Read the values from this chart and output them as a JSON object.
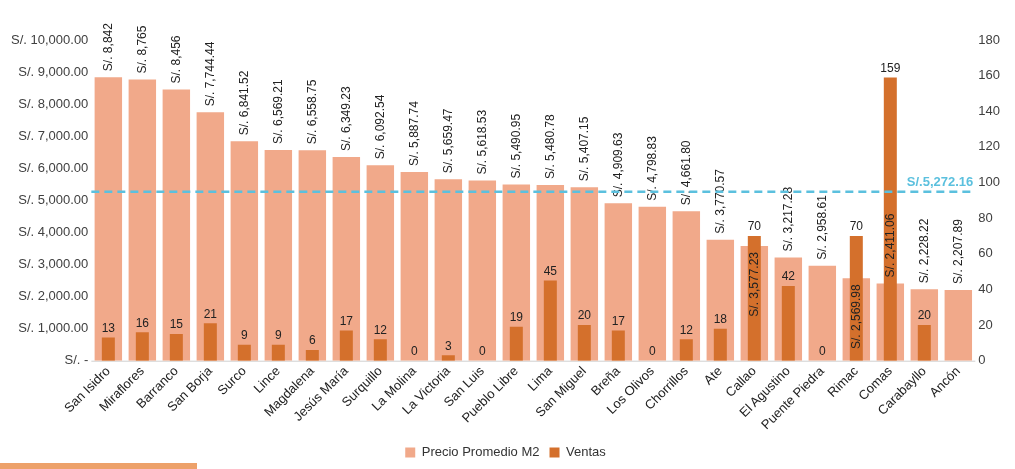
{
  "chart_data": {
    "type": "bar",
    "categories": [
      "San Isidro",
      "Miraflores",
      "Barranco",
      "San Borja",
      "Surco",
      "Lince",
      "Magdalena",
      "Jesús María",
      "Surquillo",
      "La Molina",
      "La Victoria",
      "San Luis",
      "Pueblo Libre",
      "Lima",
      "San Miguel",
      "Breña",
      "Los Olivos",
      "Chorrillos",
      "Ate",
      "Callao",
      "El Agustino",
      "Puente Piedra",
      "Rimac",
      "Comas",
      "Carabayllo",
      "Ancón"
    ],
    "series": [
      {
        "name": "Precio Promedio M2",
        "color": "#f1a98a",
        "values": [
          8842,
          8765,
          8456,
          7744.44,
          6841.52,
          6569.21,
          6558.75,
          6349.23,
          6092.54,
          5887.74,
          5659.47,
          5618.53,
          5490.95,
          5480.78,
          5407.15,
          4909.63,
          4798.83,
          4661.8,
          3770.57,
          3577.23,
          3217.28,
          2958.61,
          2569.98,
          2411.06,
          2228.22,
          2207.89
        ],
        "value_labels": [
          "S/. 8,842",
          "S/. 8,765",
          "S/. 8,456",
          "S/. 7,744.44",
          "S/. 6,841.52",
          "S/. 6,569.21",
          "S/. 6,558.75",
          "S/. 6,349.23",
          "S/. 6,092.54",
          "S/. 5,887.74",
          "S/. 5,659.47",
          "S/. 5,618.53",
          "S/. 5,490.95",
          "S/. 5,480.78",
          "S/. 5,407.15",
          "S/. 4,909.63",
          "S/. 4,798.83",
          "S/. 4,661.80",
          "S/. 3,770.57",
          "S/. 3,577.23",
          "S/. 3,217.28",
          "S/. 2,958.61",
          "S/. 2,569.98",
          "S/. 2,411.06",
          "S/. 2,228.22",
          "S/. 2,207.89"
        ]
      },
      {
        "name": "Ventas",
        "axis": "y2",
        "color": "#d4702c",
        "values": [
          13,
          16,
          15,
          21,
          9,
          9,
          6,
          17,
          12,
          0,
          3,
          0,
          19,
          45,
          20,
          17,
          0,
          12,
          18,
          70,
          42,
          0,
          70,
          159,
          20,
          null
        ],
        "value_labels": [
          "13",
          "16",
          "15",
          "21",
          "9",
          "9",
          "6",
          "17",
          "12",
          "0",
          "3",
          "0",
          "19",
          "45",
          "20",
          "17",
          "0",
          "12",
          "18",
          "70",
          "42",
          "0",
          "70",
          "159",
          "20",
          null
        ]
      }
    ],
    "ylim": [
      0,
      10000
    ],
    "yticks": [
      {
        "value": 0,
        "label": "S/. -"
      },
      {
        "value": 1000,
        "label": "S/. 1,000.00"
      },
      {
        "value": 2000,
        "label": "S/. 2,000.00"
      },
      {
        "value": 3000,
        "label": "S/. 3,000.00"
      },
      {
        "value": 4000,
        "label": "S/. 4,000.00"
      },
      {
        "value": 5000,
        "label": "S/. 5,000.00"
      },
      {
        "value": 6000,
        "label": "S/. 6,000.00"
      },
      {
        "value": 7000,
        "label": "S/. 7,000.00"
      },
      {
        "value": 8000,
        "label": "S/. 8,000.00"
      },
      {
        "value": 9000,
        "label": "S/. 9,000.00"
      },
      {
        "value": 10000,
        "label": "S/. 10,000.00"
      }
    ],
    "y2lim": [
      0,
      180
    ],
    "y2ticks": [
      0,
      20,
      40,
      60,
      80,
      100,
      120,
      140,
      160,
      180
    ],
    "ref_lines": [
      {
        "axis": "y",
        "value": 5272.16,
        "label": "S/.5,272.16",
        "color": "#5bc0de",
        "line_style": "dashed"
      }
    ],
    "grid": false,
    "legend": "bottom"
  }
}
